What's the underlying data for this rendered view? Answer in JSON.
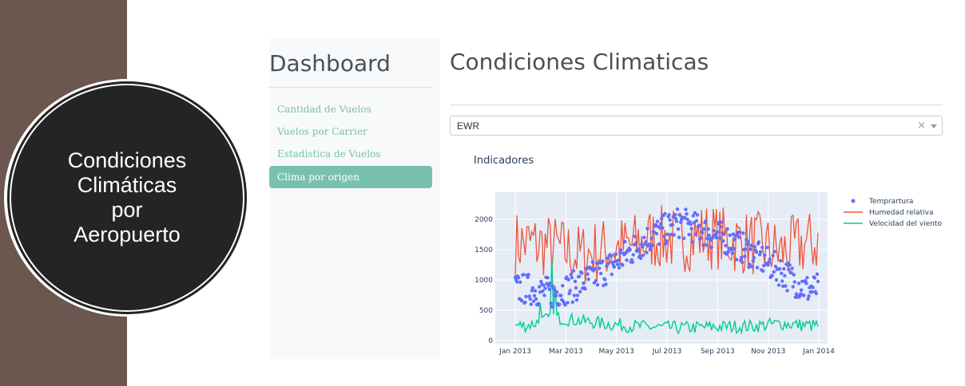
{
  "slide": {
    "circle_lines": [
      "Condiciones",
      "Climáticas",
      "por",
      "Aeropuerto"
    ]
  },
  "sidebar": {
    "title": "Dashboard",
    "items": [
      {
        "label": "Cantidad de Vuelos",
        "active": false
      },
      {
        "label": "Vuelos por Carrier",
        "active": false
      },
      {
        "label": "Estadistica de Vuelos",
        "active": false
      },
      {
        "label": "Clima por origen",
        "active": true
      }
    ]
  },
  "main": {
    "title": "Condiciones Climaticas",
    "dropdown": {
      "value": "EWR",
      "clear": "×"
    }
  },
  "colors": {
    "accent": "#78c2ad",
    "temperature": "#636efa",
    "humidity": "#ef553b",
    "wind": "#00cc96",
    "plot_bg": "#e5ecf6"
  },
  "chart_data": {
    "type": "line",
    "title": "Indicadores",
    "x_ticks": [
      "Jan 2013",
      "Mar 2013",
      "May 2013",
      "Jul 2013",
      "Sep 2013",
      "Nov 2013",
      "Jan 2014"
    ],
    "y_ticks": [
      "0",
      "500",
      "1000",
      "1500",
      "2000"
    ],
    "ylim": [
      0,
      2400
    ],
    "xlim": [
      "2013-01-01",
      "2014-01-05"
    ],
    "legend_position": "top-right",
    "series": [
      {
        "name": "Temprature",
        "label": "Temprartura",
        "mode": "markers",
        "color": "#636efa",
        "monthly_values": [
          850,
          780,
          920,
          1150,
          1450,
          1750,
          1950,
          1800,
          1650,
          1400,
          1150,
          850
        ]
      },
      {
        "name": "Humedad relativa",
        "mode": "lines",
        "color": "#ef553b",
        "monthly_values": [
          1600,
          1550,
          1400,
          1500,
          1550,
          1700,
          1650,
          1750,
          1650,
          1600,
          1450,
          1600
        ],
        "range": [
          750,
          2300
        ]
      },
      {
        "name": "Velocidad del viento",
        "mode": "lines",
        "color": "#00cc96",
        "monthly_values": [
          250,
          380,
          330,
          280,
          240,
          220,
          210,
          220,
          230,
          240,
          280,
          250
        ],
        "peak": 1350
      }
    ]
  }
}
